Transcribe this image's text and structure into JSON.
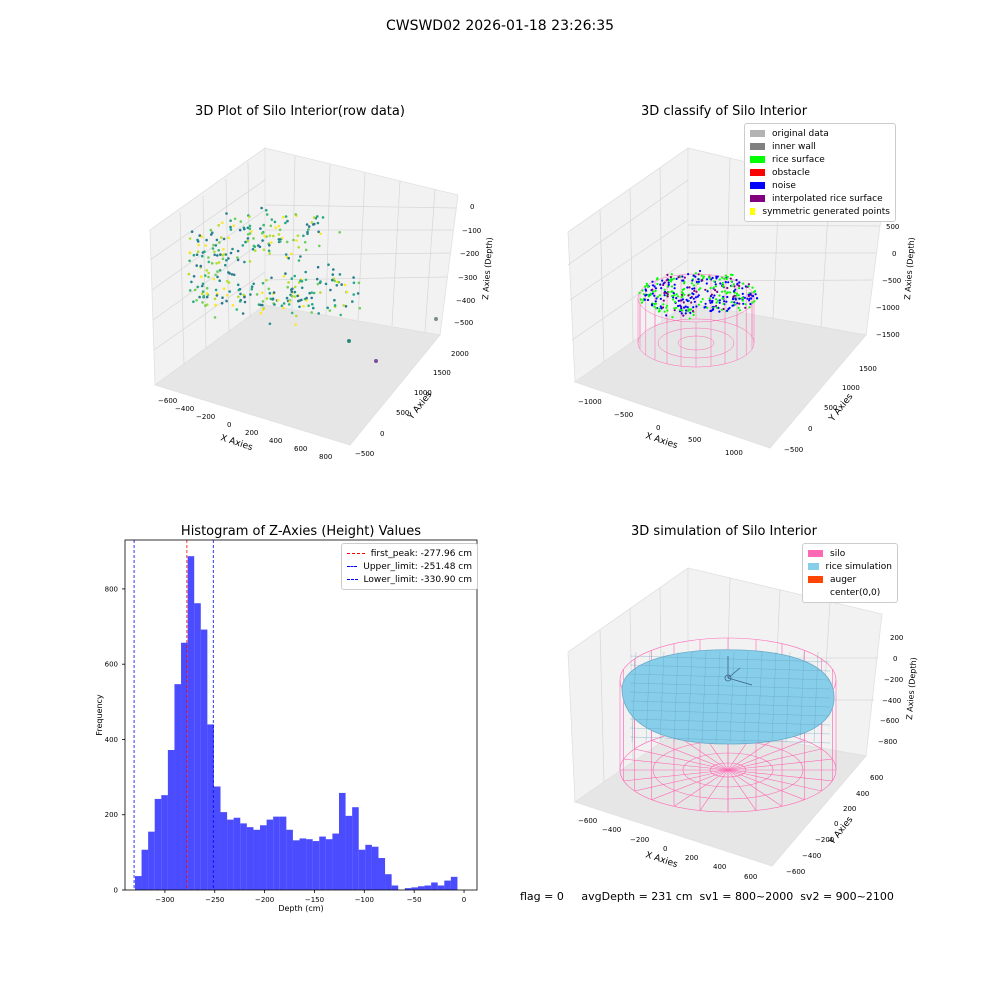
{
  "suptitle": "CWSWD02 2026-01-18 23:26:35",
  "panels": {
    "raw": {
      "title": "3D Plot of Silo Interior(row data)",
      "xlabel": "X Axies",
      "ylabel": "Y Axies",
      "zlabel": "Z Axies (Depth)",
      "xticks": [
        "−600",
        "−400",
        "−200",
        "0",
        "200",
        "400",
        "600",
        "800"
      ],
      "yticks": [
        "−500",
        "0",
        "500",
        "1000",
        "1500",
        "2000"
      ],
      "zticks": [
        "0",
        "−100",
        "−200",
        "−300",
        "−400",
        "−500"
      ]
    },
    "classify": {
      "title": "3D classify of Silo Interior",
      "xlabel": "X Axies",
      "ylabel": "Y Axies",
      "zlabel": "Z Axies (Depth)",
      "xticks": [
        "−1000",
        "−500",
        "0",
        "500",
        "1000"
      ],
      "yticks": [
        "−500",
        "0",
        "500",
        "1000",
        "1500"
      ],
      "zticks": [
        "500",
        "0",
        "−500",
        "−1000",
        "−1500"
      ],
      "legend": [
        {
          "label": "original data",
          "color": "#b3b3b3"
        },
        {
          "label": "inner wall",
          "color": "#808080"
        },
        {
          "label": "rice surface",
          "color": "#00ff00"
        },
        {
          "label": "obstacle",
          "color": "#ff0000"
        },
        {
          "label": "noise",
          "color": "#0000ff"
        },
        {
          "label": "interpolated rice surface",
          "color": "#800080"
        },
        {
          "label": "symmetric generated points",
          "color": "#ffff00"
        }
      ]
    },
    "simulation": {
      "title": "3D simulation of Silo Interior",
      "xlabel": "X Axies",
      "ylabel": "Y Axies",
      "zlabel": "Z Axies (Depth)",
      "xticks": [
        "−600",
        "−400",
        "−200",
        "0",
        "200",
        "400",
        "600"
      ],
      "yticks": [
        "−600",
        "−400",
        "−200",
        "0",
        "200",
        "400",
        "600"
      ],
      "zticks": [
        "200",
        "0",
        "−200",
        "−400",
        "−600",
        "−800"
      ],
      "legend": [
        {
          "label": "silo",
          "color": "#ff69b4"
        },
        {
          "label": "rice simulation",
          "color": "#87ceeb"
        },
        {
          "label": "auger",
          "color": "#ff4500"
        },
        {
          "label": "center(0,0)",
          "color": ""
        }
      ]
    }
  },
  "status": {
    "flag": "flag = 0",
    "avg": "avgDepth = 231 cm  sv1 = 800~2000  sv2 = 900~2100"
  },
  "chart_data": {
    "type": "bar",
    "title": "Histogram of Z-Axies (Height) Values",
    "xlabel": "Depth (cm)",
    "ylabel": "Frequency",
    "xlim": [
      -340,
      13
    ],
    "ylim": [
      0,
      930
    ],
    "xticks": [
      -300,
      -250,
      -200,
      -150,
      -100,
      -50,
      0
    ],
    "yticks": [
      0,
      200,
      400,
      600,
      800
    ],
    "bin_width": 6.6,
    "bins_left": [
      -330,
      -323.4,
      -316.8,
      -310.2,
      -303.6,
      -297,
      -290.4,
      -283.8,
      -277.2,
      -270.6,
      -264,
      -257.4,
      -250.8,
      -244.2,
      -237.6,
      -231,
      -224.4,
      -217.8,
      -211.2,
      -204.6,
      -198,
      -191.4,
      -184.8,
      -178.2,
      -171.6,
      -165,
      -158.4,
      -151.8,
      -145.2,
      -138.6,
      -132,
      -125.4,
      -118.8,
      -112.2,
      -105.6,
      -99,
      -92.4,
      -85.8,
      -79.2,
      -72.6,
      -66,
      -59.4,
      -52.8,
      -46.2,
      -39.6,
      -33,
      -26.4,
      -19.8,
      -13.2,
      -6.6
    ],
    "values": [
      37,
      107,
      155,
      242,
      252,
      372,
      547,
      657,
      887,
      762,
      692,
      440,
      275,
      207,
      187,
      192,
      177,
      167,
      160,
      172,
      187,
      195,
      195,
      160,
      132,
      137,
      135,
      130,
      142,
      135,
      150,
      258,
      197,
      220,
      107,
      120,
      115,
      85,
      42,
      12,
      0,
      5,
      7,
      10,
      12,
      20,
      12,
      25,
      35,
      0
    ],
    "color": "#0000ff",
    "lines": [
      {
        "label": "first_peak: -277.96 cm",
        "x": -277.96,
        "color": "#ff0000"
      },
      {
        "label": "Upper_limit: -251.48 cm",
        "x": -251.48,
        "color": "#0000ff"
      },
      {
        "label": "Lower_limit: -330.90 cm",
        "x": -330.9,
        "color": "#0000ff"
      }
    ]
  }
}
